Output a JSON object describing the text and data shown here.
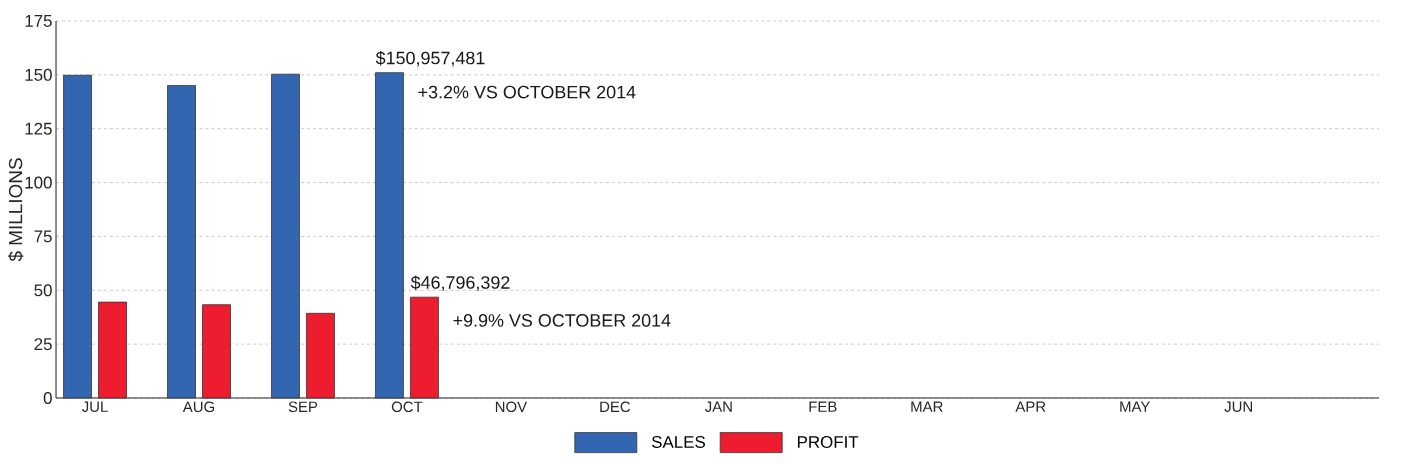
{
  "chart_data": {
    "type": "bar",
    "ylabel": "$ MILLIONS",
    "categories": [
      "JUL",
      "AUG",
      "SEP",
      "OCT",
      "NOV",
      "DEC",
      "JAN",
      "FEB",
      "MAR",
      "APR",
      "MAY",
      "JUN"
    ],
    "series": [
      {
        "name": "SALES",
        "color": "#3366b0",
        "values": [
          149.8,
          145.0,
          150.3,
          151.0,
          null,
          null,
          null,
          null,
          null,
          null,
          null,
          null
        ]
      },
      {
        "name": "PROFIT",
        "color": "#ed1c2e",
        "values": [
          44.5,
          43.3,
          39.3,
          46.8,
          null,
          null,
          null,
          null,
          null,
          null,
          null,
          null
        ]
      }
    ],
    "annotations": [
      {
        "text": "$150,957,481",
        "x": "OCT",
        "y": 151.0
      },
      {
        "text": "+3.2% VS OCTOBER 2014",
        "x": "OCT",
        "y": 142
      },
      {
        "text": "$46,796,392",
        "x": "OCT",
        "y": 46.8
      },
      {
        "text": "+9.9% VS OCTOBER 2014",
        "x": "OCT",
        "y": 36
      }
    ],
    "ylim": [
      0,
      175
    ],
    "yticks": [
      0,
      25,
      50,
      75,
      100,
      125,
      150,
      175
    ],
    "grid": "y",
    "legend": "bottom"
  }
}
